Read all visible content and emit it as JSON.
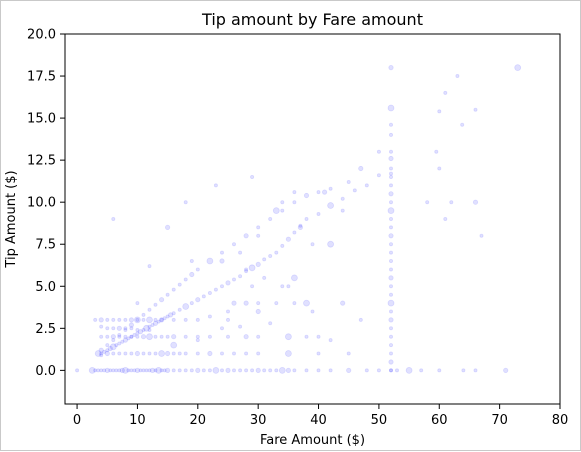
{
  "chart_data": {
    "type": "scatter",
    "title": "Tip amount by Fare amount",
    "xlabel": "Fare Amount ($)",
    "ylabel": "Tip Amount ($)",
    "xlim": [
      -2,
      80
    ],
    "ylim": [
      -2,
      20
    ],
    "xticks": [
      0,
      10,
      20,
      30,
      40,
      50,
      60,
      70,
      80
    ],
    "yticks": [
      0.0,
      2.5,
      5.0,
      7.5,
      10.0,
      12.5,
      15.0,
      17.5,
      20.0
    ],
    "ytick_labels": [
      "0.0",
      "2.5",
      "5.0",
      "7.5",
      "10.0",
      "12.5",
      "15.0",
      "17.5",
      "20.0"
    ],
    "xtick_labels": [
      "0",
      "10",
      "20",
      "30",
      "40",
      "50",
      "60",
      "70",
      "80"
    ],
    "grid": false,
    "point_color": "#0000ff",
    "point_alpha": 0.12,
    "points": [
      [
        2.5,
        0
      ],
      [
        3,
        0
      ],
      [
        3.5,
        0
      ],
      [
        4,
        0
      ],
      [
        4.5,
        0
      ],
      [
        5,
        0
      ],
      [
        5.5,
        0
      ],
      [
        6,
        0
      ],
      [
        6.5,
        0
      ],
      [
        7,
        0
      ],
      [
        7.5,
        0
      ],
      [
        8,
        0
      ],
      [
        8.5,
        0
      ],
      [
        9,
        0
      ],
      [
        9.5,
        0
      ],
      [
        10,
        0
      ],
      [
        10.5,
        0
      ],
      [
        11,
        0
      ],
      [
        11.5,
        0
      ],
      [
        12,
        0
      ],
      [
        12.5,
        0
      ],
      [
        13,
        0
      ],
      [
        13.5,
        0
      ],
      [
        14,
        0
      ],
      [
        14.5,
        0
      ],
      [
        15,
        0
      ],
      [
        16,
        0
      ],
      [
        17,
        0
      ],
      [
        18,
        0
      ],
      [
        19,
        0
      ],
      [
        20,
        0
      ],
      [
        21,
        0
      ],
      [
        22,
        0
      ],
      [
        23,
        0
      ],
      [
        24,
        0
      ],
      [
        25,
        0
      ],
      [
        26,
        0
      ],
      [
        27,
        0
      ],
      [
        28,
        0
      ],
      [
        29,
        0
      ],
      [
        30,
        0
      ],
      [
        31,
        0
      ],
      [
        32,
        0
      ],
      [
        33,
        0
      ],
      [
        34,
        0
      ],
      [
        35,
        0
      ],
      [
        36,
        0
      ],
      [
        38,
        0
      ],
      [
        40,
        0
      ],
      [
        42,
        0
      ],
      [
        45,
        0
      ],
      [
        48,
        0
      ],
      [
        50,
        0
      ],
      [
        52,
        0
      ],
      [
        53,
        0
      ],
      [
        55,
        0
      ],
      [
        57,
        0
      ],
      [
        60,
        0
      ],
      [
        64,
        0
      ],
      [
        66,
        0
      ],
      [
        71,
        0
      ],
      [
        0,
        0
      ],
      [
        4,
        1
      ],
      [
        4.5,
        1.1
      ],
      [
        5,
        1.2
      ],
      [
        5.5,
        1.3
      ],
      [
        6,
        1.4
      ],
      [
        6.5,
        1.5
      ],
      [
        7,
        1.6
      ],
      [
        7.5,
        1.7
      ],
      [
        8,
        1.8
      ],
      [
        8.5,
        1.9
      ],
      [
        9,
        2
      ],
      [
        9.5,
        2.1
      ],
      [
        10,
        2.2
      ],
      [
        10.5,
        2.3
      ],
      [
        11,
        2.4
      ],
      [
        11.5,
        2.5
      ],
      [
        12,
        2.6
      ],
      [
        12.5,
        2.7
      ],
      [
        13,
        2.8
      ],
      [
        13.5,
        2.9
      ],
      [
        14,
        3
      ],
      [
        14.5,
        3.1
      ],
      [
        15,
        3.2
      ],
      [
        15.5,
        3.3
      ],
      [
        16,
        3.4
      ],
      [
        17,
        3.6
      ],
      [
        18,
        3.8
      ],
      [
        19,
        4
      ],
      [
        20,
        4.2
      ],
      [
        21,
        4.4
      ],
      [
        22,
        4.6
      ],
      [
        23,
        4.8
      ],
      [
        24,
        5
      ],
      [
        25,
        5.2
      ],
      [
        26,
        5.4
      ],
      [
        27,
        5.6
      ],
      [
        28,
        5.9
      ],
      [
        29,
        6.1
      ],
      [
        30,
        6.3
      ],
      [
        31,
        6.6
      ],
      [
        32,
        6.8
      ],
      [
        33,
        7
      ],
      [
        34,
        7.4
      ],
      [
        35,
        7.8
      ],
      [
        36,
        8.2
      ],
      [
        37,
        8.6
      ],
      [
        38,
        9
      ],
      [
        40,
        9.3
      ],
      [
        42,
        9.8
      ],
      [
        44,
        10.2
      ],
      [
        46,
        10.7
      ],
      [
        48,
        11
      ],
      [
        50,
        11.6
      ],
      [
        4,
        1.2
      ],
      [
        5,
        1.5
      ],
      [
        6,
        1.8
      ],
      [
        7,
        2.1
      ],
      [
        8,
        2.4
      ],
      [
        9,
        2.7
      ],
      [
        10,
        3
      ],
      [
        11,
        3.3
      ],
      [
        12,
        3.6
      ],
      [
        13,
        3.9
      ],
      [
        14,
        4.2
      ],
      [
        15,
        4.5
      ],
      [
        16,
        4.8
      ],
      [
        17,
        5.1
      ],
      [
        18,
        5.4
      ],
      [
        19,
        5.7
      ],
      [
        20,
        6
      ],
      [
        22,
        6.5
      ],
      [
        24,
        7
      ],
      [
        26,
        7.5
      ],
      [
        28,
        8
      ],
      [
        30,
        8.5
      ],
      [
        32,
        9
      ],
      [
        34,
        9.5
      ],
      [
        36,
        10
      ],
      [
        38,
        10.4
      ],
      [
        40,
        10.6
      ],
      [
        42,
        10.8
      ],
      [
        3.5,
        1
      ],
      [
        4,
        0.9
      ],
      [
        5,
        1
      ],
      [
        6,
        1
      ],
      [
        7,
        1
      ],
      [
        8,
        1
      ],
      [
        9,
        1
      ],
      [
        10,
        1
      ],
      [
        11,
        1
      ],
      [
        12,
        1
      ],
      [
        13,
        1
      ],
      [
        14,
        1
      ],
      [
        15,
        1
      ],
      [
        16,
        1
      ],
      [
        17,
        1
      ],
      [
        18,
        1
      ],
      [
        20,
        1
      ],
      [
        22,
        1
      ],
      [
        24,
        1
      ],
      [
        26,
        1
      ],
      [
        28,
        1
      ],
      [
        30,
        1
      ],
      [
        35,
        1
      ],
      [
        40,
        1
      ],
      [
        45,
        1
      ],
      [
        4,
        2
      ],
      [
        5,
        2
      ],
      [
        6,
        2
      ],
      [
        7,
        2
      ],
      [
        8,
        2
      ],
      [
        9,
        2
      ],
      [
        10,
        2
      ],
      [
        11,
        2
      ],
      [
        12,
        2
      ],
      [
        13,
        2
      ],
      [
        14,
        2
      ],
      [
        15,
        2
      ],
      [
        16,
        2
      ],
      [
        18,
        2
      ],
      [
        20,
        2
      ],
      [
        22,
        2
      ],
      [
        25,
        2
      ],
      [
        28,
        2
      ],
      [
        30,
        2
      ],
      [
        35,
        2
      ],
      [
        40,
        2
      ],
      [
        3,
        3
      ],
      [
        4,
        3
      ],
      [
        5,
        3
      ],
      [
        6,
        3
      ],
      [
        7,
        3
      ],
      [
        8,
        3
      ],
      [
        9,
        3
      ],
      [
        10,
        3
      ],
      [
        11,
        3
      ],
      [
        12,
        3
      ],
      [
        13,
        3
      ],
      [
        14,
        3
      ],
      [
        16,
        3
      ],
      [
        18,
        3
      ],
      [
        20,
        3
      ],
      [
        25,
        3
      ],
      [
        28,
        4
      ],
      [
        30,
        4
      ],
      [
        33,
        4
      ],
      [
        36,
        4
      ],
      [
        38,
        4
      ],
      [
        26,
        4
      ],
      [
        25,
        3.5
      ],
      [
        4,
        2.6
      ],
      [
        5,
        2.5
      ],
      [
        6,
        2.5
      ],
      [
        7,
        2.5
      ],
      [
        8,
        2.5
      ],
      [
        9,
        2.5
      ],
      [
        10,
        2.4
      ],
      [
        12,
        2.4
      ],
      [
        16,
        1.5
      ],
      [
        20,
        1.8
      ],
      [
        24,
        2.5
      ],
      [
        27,
        2.6
      ],
      [
        22,
        3.2
      ],
      [
        30,
        3.5
      ],
      [
        35,
        5
      ],
      [
        38,
        2
      ],
      [
        42,
        1.8
      ],
      [
        47,
        3
      ],
      [
        44,
        4
      ],
      [
        36,
        5.5
      ],
      [
        34,
        5
      ],
      [
        29,
        5
      ],
      [
        52,
        0
      ],
      [
        52,
        0.5
      ],
      [
        52,
        1
      ],
      [
        52,
        1.5
      ],
      [
        52,
        2
      ],
      [
        52,
        2.5
      ],
      [
        52,
        3
      ],
      [
        52,
        3.5
      ],
      [
        52,
        4
      ],
      [
        52,
        4.5
      ],
      [
        52,
        5
      ],
      [
        52,
        5.5
      ],
      [
        52,
        6
      ],
      [
        52,
        6.5
      ],
      [
        52,
        7
      ],
      [
        52,
        7.5
      ],
      [
        52,
        8
      ],
      [
        52,
        8.5
      ],
      [
        52,
        9
      ],
      [
        52,
        9.5
      ],
      [
        52,
        10
      ],
      [
        52,
        10.5
      ],
      [
        52,
        11
      ],
      [
        52,
        11.5
      ],
      [
        52,
        11.7
      ],
      [
        52,
        12
      ],
      [
        52,
        12.6
      ],
      [
        52,
        13
      ],
      [
        52,
        14
      ],
      [
        52,
        14.6
      ],
      [
        52,
        15.6
      ],
      [
        52,
        18
      ],
      [
        60,
        15.4
      ],
      [
        58,
        10
      ],
      [
        61,
        9
      ],
      [
        62,
        10
      ],
      [
        66,
        10
      ],
      [
        67,
        8
      ],
      [
        61,
        16.5
      ],
      [
        63,
        17.5
      ],
      [
        66,
        15.5
      ],
      [
        73,
        18
      ],
      [
        63.8,
        14.6
      ],
      [
        59.5,
        13
      ],
      [
        60,
        12
      ],
      [
        50,
        13
      ],
      [
        47,
        12
      ],
      [
        45,
        11.2
      ],
      [
        23,
        11
      ],
      [
        29,
        11.5
      ],
      [
        36,
        10.6
      ],
      [
        41,
        10.6
      ],
      [
        33,
        9.5
      ],
      [
        34,
        10
      ],
      [
        44,
        9.5
      ],
      [
        18,
        10
      ],
      [
        15,
        8.5
      ],
      [
        19,
        6.5
      ],
      [
        12,
        6.2
      ],
      [
        10,
        4
      ],
      [
        6,
        9
      ],
      [
        37,
        8.5
      ],
      [
        39,
        7.5
      ],
      [
        42,
        7.5
      ],
      [
        30,
        8
      ],
      [
        27,
        7
      ],
      [
        24,
        6.5
      ],
      [
        28,
        6
      ],
      [
        31,
        5.5
      ],
      [
        32,
        2.8
      ],
      [
        39,
        3.5
      ]
    ]
  }
}
